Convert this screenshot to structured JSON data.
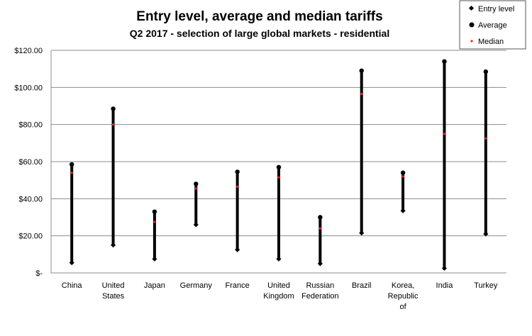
{
  "chart_data": {
    "type": "scatter",
    "title": "Entry level, average and median tariffs",
    "subtitle": "Q2 2017 - selection of large global markets - residential",
    "xlabel": "",
    "ylabel": "",
    "ylim": [
      0,
      120
    ],
    "grid": true,
    "legend_position": "top-right",
    "y_ticks": [
      "$-",
      "$20.00",
      "$40.00",
      "$60.00",
      "$80.00",
      "$100.00",
      "$120.00"
    ],
    "categories": [
      [
        "China"
      ],
      [
        "United",
        "States"
      ],
      [
        "Japan"
      ],
      [
        "Germany"
      ],
      [
        "France"
      ],
      [
        "United",
        "Kingdom"
      ],
      [
        "Russian",
        "Federation"
      ],
      [
        "Brazil"
      ],
      [
        "Korea,",
        "Republic",
        "of"
      ],
      [
        "India"
      ],
      [
        "Turkey"
      ]
    ],
    "series": [
      {
        "name": "Entry level",
        "marker": "diamond",
        "color": "#000000",
        "values": [
          5.5,
          15.0,
          7.5,
          26.0,
          12.5,
          7.5,
          5.0,
          21.5,
          33.5,
          2.5,
          21.0
        ]
      },
      {
        "name": "Average",
        "marker": "circle",
        "color": "#000000",
        "values": [
          58.5,
          88.5,
          33.0,
          48.0,
          54.5,
          57.0,
          30.0,
          109.0,
          54.0,
          114.0,
          108.5
        ]
      },
      {
        "name": "Median",
        "marker": "dot",
        "color": "#ff2020",
        "values": [
          54.0,
          80.0,
          27.5,
          45.5,
          46.5,
          51.5,
          24.0,
          96.5,
          52.0,
          75.0,
          72.5
        ]
      }
    ]
  }
}
